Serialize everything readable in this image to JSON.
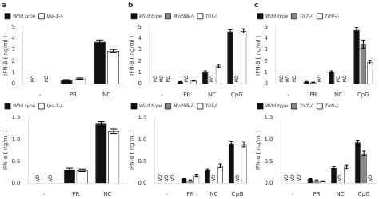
{
  "chart_data": [
    {
      "type": "bar",
      "title": "a",
      "categories": [
        "-",
        "PR",
        "NC"
      ],
      "series": [
        {
          "name": "Wild type",
          "color": "#111111",
          "values": [
            0,
            0.35,
            3.7
          ],
          "errors": [
            0,
            0.04,
            0.15
          ]
        },
        {
          "name": "Ips-1-/-",
          "color": "#ffffff",
          "values": [
            0,
            0.48,
            2.9
          ],
          "errors": [
            0,
            0.05,
            0.12
          ]
        }
      ],
      "ylabel": "IFN-β ( ng/ml )",
      "ylim": [
        0,
        5
      ],
      "yticks": [
        0,
        1,
        2,
        3,
        4,
        5
      ],
      "grid": false,
      "legend": "upper left",
      "annotations": [
        {
          "text": "ND",
          "category": "-",
          "series": "Wild type"
        },
        {
          "text": "ND",
          "category": "-",
          "series": "Ips-1-/-"
        }
      ]
    },
    {
      "type": "bar",
      "title": "b",
      "categories": [
        "-",
        "PR",
        "NC",
        "CpG"
      ],
      "series": [
        {
          "name": "Wild type",
          "color": "#111111",
          "values": [
            0,
            0.2,
            1.05,
            4.6
          ],
          "errors": [
            0,
            0.03,
            0.1,
            0.15
          ]
        },
        {
          "name": "Myd88-/-",
          "color": "#888888",
          "values": [
            0,
            0,
            0,
            0
          ],
          "errors": [
            0,
            0,
            0,
            0
          ]
        },
        {
          "name": "Trif-/-",
          "color": "#ffffff",
          "values": [
            0,
            0.3,
            1.6,
            4.65
          ],
          "errors": [
            0,
            0.04,
            0.12,
            0.18
          ]
        }
      ],
      "ylabel": "IFN-β ( ng/ml )",
      "ylim": [
        0,
        5
      ],
      "yticks": [
        0,
        1,
        2,
        3,
        4,
        5
      ],
      "grid": false,
      "legend": "upper left",
      "annotations": [
        {
          "text": "ND",
          "category": "-",
          "series": "Wild type"
        },
        {
          "text": "ND",
          "category": "-",
          "series": "Myd88-/-"
        },
        {
          "text": "ND",
          "category": "-",
          "series": "Trif-/-"
        },
        {
          "text": "ND",
          "category": "PR",
          "series": "Myd88-/-"
        },
        {
          "text": "ND",
          "category": "NC",
          "series": "Myd88-/-"
        },
        {
          "text": "ND",
          "category": "CpG",
          "series": "Myd88-/-"
        }
      ]
    },
    {
      "type": "bar",
      "title": "c",
      "categories": [
        "-",
        "PR",
        "NC",
        "CpG"
      ],
      "series": [
        {
          "name": "Wild type",
          "color": "#111111",
          "values": [
            0,
            0.2,
            1.05,
            4.75
          ],
          "errors": [
            0,
            0.03,
            0.1,
            0.2
          ]
        },
        {
          "name": "Tlr7-/-",
          "color": "#888888",
          "values": [
            0,
            0.15,
            0,
            3.5
          ],
          "errors": [
            0,
            0.02,
            0,
            0.35
          ]
        },
        {
          "name": "Tlr9-/-",
          "color": "#ffffff",
          "values": [
            0,
            0,
            0,
            1.9
          ],
          "errors": [
            0,
            0,
            0,
            0.15
          ]
        }
      ],
      "ylabel": "IFN-β ( ng/ml )",
      "ylim": [
        0,
        5
      ],
      "yticks": [
        0,
        1,
        2,
        3,
        4,
        5
      ],
      "grid": false,
      "legend": "upper left",
      "annotations": [
        {
          "text": "ND",
          "category": "-",
          "series": "Wild type"
        },
        {
          "text": "ND",
          "category": "-",
          "series": "Tlr7-/-"
        },
        {
          "text": "ND",
          "category": "-",
          "series": "Tlr9-/-"
        },
        {
          "text": "ND",
          "category": "PR",
          "series": "Tlr9-/-"
        },
        {
          "text": "ND",
          "category": "NC",
          "series": "Tlr7-/-"
        },
        {
          "text": "ND",
          "category": "NC",
          "series": "Tlr9-/-"
        }
      ]
    },
    {
      "type": "bar",
      "categories": [
        "-",
        "PR",
        "NC"
      ],
      "series": [
        {
          "name": "Wild type",
          "color": "#111111",
          "values": [
            0,
            0.32,
            1.35
          ],
          "errors": [
            0,
            0.03,
            0.05
          ]
        },
        {
          "name": "Ips-1-/-",
          "color": "#ffffff",
          "values": [
            0,
            0.3,
            1.18
          ],
          "errors": [
            0,
            0.03,
            0.05
          ]
        }
      ],
      "ylabel": "IFN-α ( ng/ml )",
      "ylim": [
        0,
        1.5
      ],
      "yticks": [
        {
          "value": 0,
          "label": "0.0"
        },
        {
          "value": 0.5,
          "label": "0.5"
        },
        {
          "value": 1.0,
          "label": "1.0"
        },
        {
          "value": 1.5,
          "label": "1.5"
        }
      ],
      "grid": false,
      "legend": "upper left",
      "annotations": [
        {
          "text": "ND",
          "category": "-",
          "series": "Wild type"
        },
        {
          "text": "ND",
          "category": "-",
          "series": "Ips-1-/-"
        }
      ]
    },
    {
      "type": "bar",
      "categories": [
        "-",
        "PR",
        "NC",
        "CpG"
      ],
      "series": [
        {
          "name": "Wild type",
          "color": "#111111",
          "values": [
            0,
            0.1,
            0.3,
            0.9
          ],
          "errors": [
            0,
            0.01,
            0.03,
            0.05
          ]
        },
        {
          "name": "Myd88-/-",
          "color": "#888888",
          "values": [
            0,
            0.07,
            0,
            0
          ],
          "errors": [
            0,
            0.01,
            0,
            0
          ]
        },
        {
          "name": "Trif-/-",
          "color": "#ffffff",
          "values": [
            0,
            0.18,
            0.4,
            0.88
          ],
          "errors": [
            0,
            0.02,
            0.04,
            0.06
          ]
        }
      ],
      "ylabel": "IFN-α ( ng/ml )",
      "ylim": [
        0,
        1.5
      ],
      "yticks": [
        {
          "value": 0,
          "label": "0.0"
        },
        {
          "value": 0.5,
          "label": "0.5"
        },
        {
          "value": 1.0,
          "label": "1.0"
        },
        {
          "value": 1.5,
          "label": "1.5"
        }
      ],
      "grid": false,
      "legend": "upper left",
      "annotations": [
        {
          "text": "ND",
          "category": "-",
          "series": "Wild type"
        },
        {
          "text": "ND",
          "category": "-",
          "series": "Myd88-/-"
        },
        {
          "text": "ND",
          "category": "-",
          "series": "Trif-/-"
        },
        {
          "text": "ND",
          "category": "NC",
          "series": "Myd88-/-"
        },
        {
          "text": "ND",
          "category": "CpG",
          "series": "Myd88-/-"
        }
      ]
    },
    {
      "type": "bar",
      "categories": [
        "-",
        "PR",
        "NC",
        "CpG"
      ],
      "series": [
        {
          "name": "Wild type",
          "color": "#111111",
          "values": [
            0,
            0.1,
            0.35,
            0.92
          ],
          "errors": [
            0,
            0.01,
            0.03,
            0.05
          ]
        },
        {
          "name": "Tlr7-/-",
          "color": "#888888",
          "values": [
            0,
            0.07,
            0,
            0.68
          ],
          "errors": [
            0,
            0.01,
            0,
            0.05
          ]
        },
        {
          "name": "Tlr9-/-",
          "color": "#ffffff",
          "values": [
            0,
            0.05,
            0.38,
            0
          ],
          "errors": [
            0,
            0.01,
            0.04,
            0
          ]
        }
      ],
      "ylabel": "IFN-α ( ng/ml )",
      "ylim": [
        0,
        1.5
      ],
      "yticks": [
        {
          "value": 0,
          "label": "0.0"
        },
        {
          "value": 0.5,
          "label": "0.5"
        },
        {
          "value": 1.0,
          "label": "1.0"
        },
        {
          "value": 1.5,
          "label": "1.5"
        }
      ],
      "grid": false,
      "legend": "upper left",
      "annotations": [
        {
          "text": "ND",
          "category": "-",
          "series": "Wild type"
        },
        {
          "text": "ND",
          "category": "-",
          "series": "Tlr7-/-"
        },
        {
          "text": "ND",
          "category": "-",
          "series": "Tlr9-/-"
        },
        {
          "text": "ND",
          "category": "NC",
          "series": "Tlr7-/-"
        },
        {
          "text": "ND",
          "category": "CpG",
          "series": "Tlr9-/-"
        }
      ]
    }
  ]
}
